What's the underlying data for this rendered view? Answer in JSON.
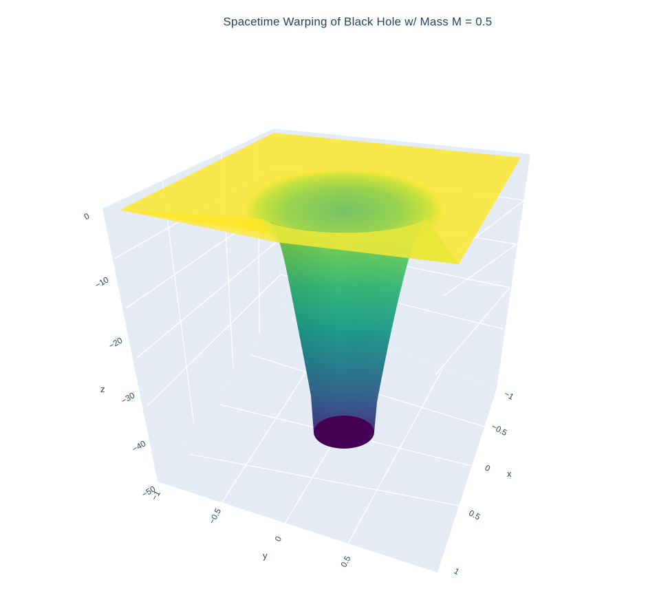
{
  "chart_data": {
    "type": "surface",
    "title": "Spacetime Warping of Black Hole w/ Mass M = 0.5",
    "colorscale": "Viridis",
    "colors": {
      "pane": "#e5ecf6",
      "grid": "#ffffff",
      "text": "#2a3f5f",
      "viridis": [
        "#440154",
        "#482878",
        "#3e4989",
        "#31688e",
        "#26828e",
        "#1f9e89",
        "#35b779",
        "#6ece58",
        "#b5de2b",
        "#fde725"
      ]
    },
    "axes": {
      "x": {
        "title": "x",
        "range": [
          -1,
          1
        ],
        "ticks": [
          "−1",
          "−0.5",
          "0",
          "0.5",
          "1"
        ]
      },
      "y": {
        "title": "y",
        "range": [
          -1,
          1
        ],
        "ticks": [
          "−1",
          "−0.5",
          "0",
          "0.5"
        ]
      },
      "z": {
        "title": "z",
        "range": [
          -50,
          0
        ],
        "ticks": [
          "0",
          "−10",
          "−20",
          "−30",
          "−40",
          "−50"
        ]
      }
    },
    "mass": 0.5,
    "surface": {
      "z_plane": 0,
      "z_min": -47,
      "throat_radius": 0.36,
      "bottom_radius": 0.16
    }
  }
}
